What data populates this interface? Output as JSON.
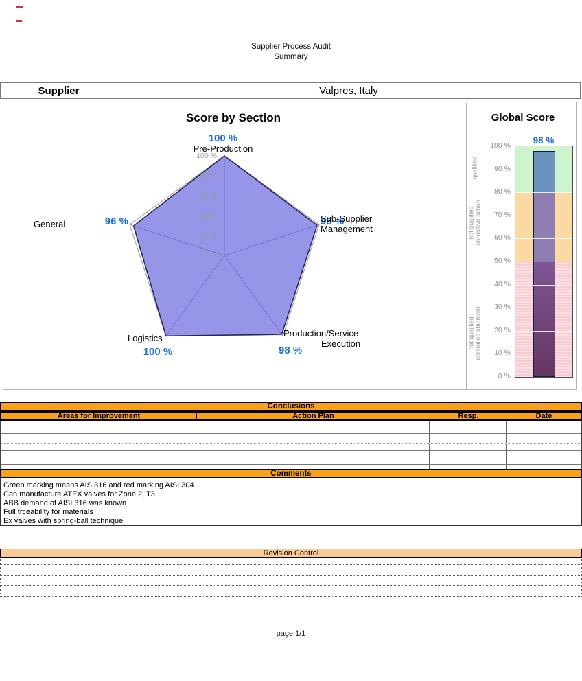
{
  "title": {
    "line1": "Supplier Process Audit",
    "line2": "Summary"
  },
  "supplier": {
    "label": "Supplier",
    "value": "Valpres, Italy"
  },
  "chart_data": [
    {
      "type": "radar",
      "title": "Score by Section",
      "axis_range": [
        0,
        100
      ],
      "axis_ticks": [
        "100 %",
        "80 %",
        "60 %",
        "40 %",
        "20 %",
        "0 %"
      ],
      "categories": [
        "Pre-Production",
        "Sub-Supplier Management",
        "Production/Service Execution",
        "Logistics",
        "General"
      ],
      "values": [
        100,
        98,
        98,
        100,
        96
      ],
      "sections": [
        {
          "name": "Pre-Production",
          "value": 100,
          "score_label": "100 %",
          "name_lines": [
            "Pre-Production"
          ]
        },
        {
          "name": "Sub-Supplier Management",
          "value": 98,
          "score_label": "98 %",
          "name_lines": [
            "Sub-Supplier",
            "Management"
          ]
        },
        {
          "name": "Production/Service Execution",
          "value": 98,
          "score_label": "98 %",
          "name_lines": [
            "Production/Service",
            "Execution"
          ]
        },
        {
          "name": "Logistics",
          "value": 100,
          "score_label": "100 %",
          "name_lines": [
            "Logistics"
          ]
        },
        {
          "name": "General",
          "value": 96,
          "score_label": "96 %",
          "name_lines": [
            "General"
          ]
        }
      ]
    },
    {
      "type": "bar",
      "title": "Global Score",
      "value": 98,
      "value_label": "98 %",
      "ylim": [
        0,
        100
      ],
      "ticks": [
        "100 %",
        "90 %",
        "80 %",
        "70 %",
        "60 %",
        "50 %",
        "40 %",
        "30 %",
        "20 %",
        "10 %",
        "0 %"
      ],
      "zones": [
        {
          "label": "qualified",
          "range": [
            80,
            100
          ],
          "color": "#cdf4cd"
        },
        {
          "label": "not qualified\ncorrective action",
          "range": [
            50,
            80
          ],
          "color": "#fad9a2"
        },
        {
          "label": "not qualified\ncontrolled shipment",
          "range": [
            0,
            50
          ],
          "color": "#facad2"
        }
      ]
    }
  ],
  "conclusions": {
    "title": "Conclusions",
    "columns": [
      "Areas for Improvement",
      "Action Plan",
      "Resp.",
      "Date"
    ],
    "rows": [
      [
        "",
        "",
        "",
        ""
      ],
      [
        "",
        "",
        "",
        ""
      ],
      [
        "",
        "",
        "",
        ""
      ],
      [
        "",
        "",
        "",
        ""
      ],
      [
        "",
        "",
        "",
        ""
      ]
    ]
  },
  "comments": {
    "title": "Comments",
    "lines": [
      "Green marking means AISI316 and red marking AISI 304.",
      "Can manufacture ATEX valves for Zone 2, T3",
      "ABB demand of AISI 316 was known",
      "Full trceability for materials",
      "Ex valves with spring-ball technique"
    ]
  },
  "revision": {
    "title": "Revision Control",
    "rows": [
      "",
      "",
      "",
      ""
    ]
  },
  "footer": {
    "page": "page 1/1"
  },
  "colors": {
    "accent_orange": "#f9a11b",
    "peach": "#facb96",
    "score_blue": "#1c6fd4",
    "radar_fill": "#9795e8",
    "radar_stroke": "#26265e",
    "radar_outer": "#a6a6a6",
    "radar_spoke": "#6e6cc4",
    "zone_green": "#cdf4cd",
    "zone_tan": "#fad9a2",
    "zone_pink": "#facad2",
    "zone_pink_stripe": "#fbdfe4",
    "bar_seg_top": "#6b93be",
    "bar_seg_mid": "#8e7eb4",
    "bar_seg_low_start": "#7e5796",
    "bar_seg_low_end": "#653561"
  }
}
